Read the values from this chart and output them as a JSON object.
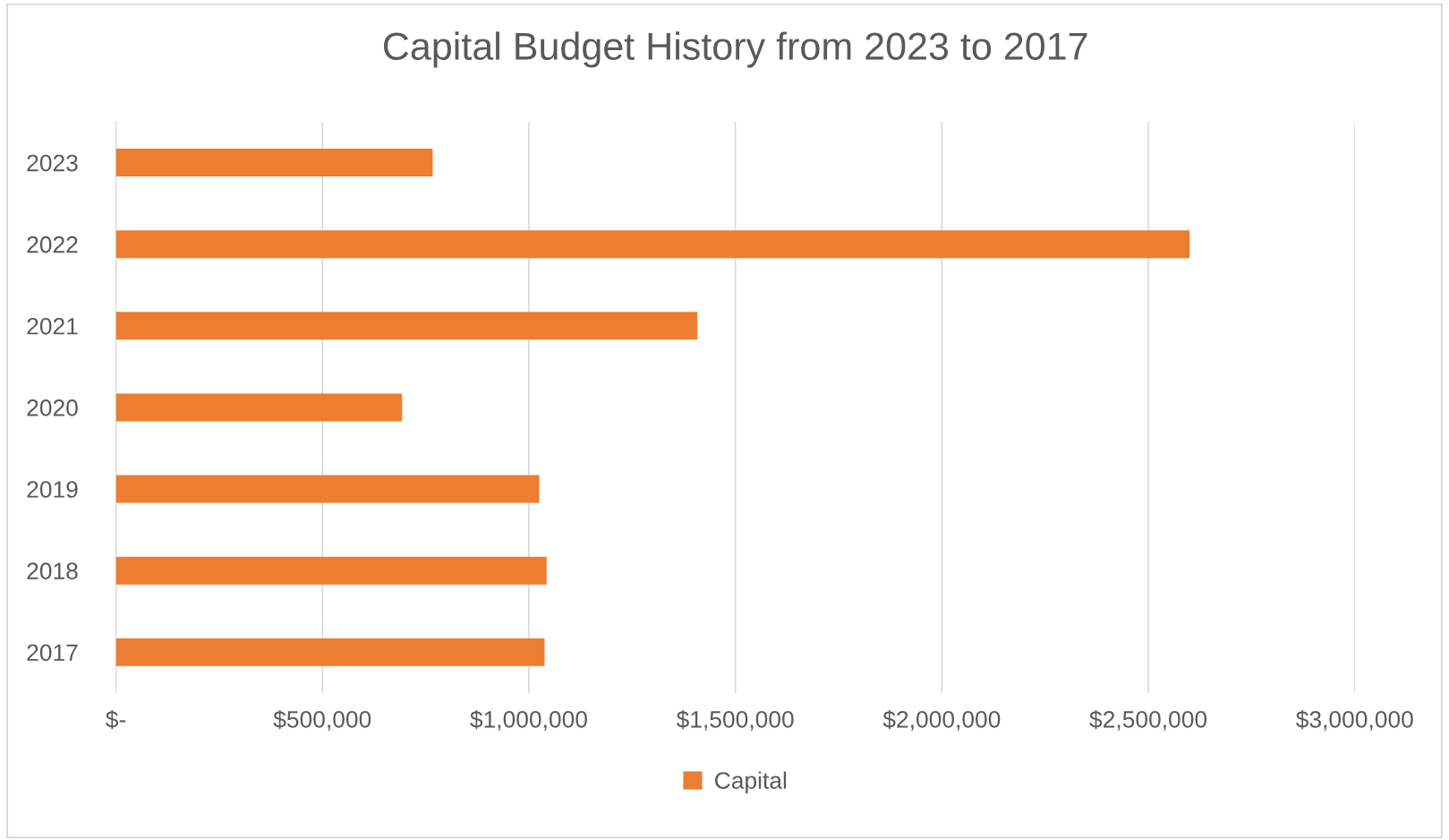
{
  "chart_data": {
    "type": "bar",
    "orientation": "horizontal",
    "title": "Capital Budget History from 2023 to 2017",
    "categories": [
      "2023",
      "2022",
      "2021",
      "2020",
      "2019",
      "2018",
      "2017"
    ],
    "series": [
      {
        "name": "Capital",
        "color": "#ed7d31",
        "values": [
          767000,
          2600000,
          1408000,
          693000,
          1025000,
          1043000,
          1038000
        ]
      }
    ],
    "xlim": [
      0,
      3000000
    ],
    "xticks": [
      {
        "value": 0,
        "label": "$-"
      },
      {
        "value": 500000,
        "label": "$500,000"
      },
      {
        "value": 1000000,
        "label": "$1,000,000"
      },
      {
        "value": 1500000,
        "label": "$1,500,000"
      },
      {
        "value": 2000000,
        "label": "$2,000,000"
      },
      {
        "value": 2500000,
        "label": "$2,500,000"
      },
      {
        "value": 3000000,
        "label": "$3,000,000"
      }
    ],
    "grid": "x",
    "legend": "bottom"
  }
}
